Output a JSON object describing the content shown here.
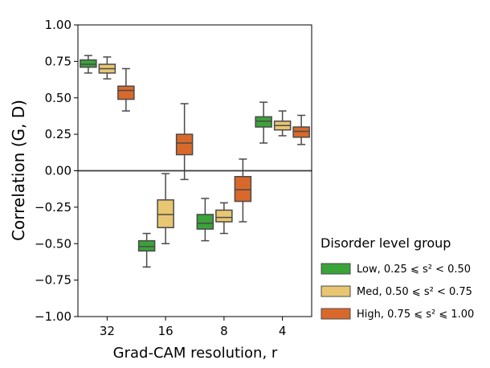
{
  "chart_data": {
    "type": "boxplot",
    "xlabel": "Grad-CAM resolution, r",
    "ylabel": "Correlation (G, D)",
    "ylim": [
      -1.0,
      1.0
    ],
    "yticks": [
      "1.00",
      "0.75",
      "0.50",
      "0.25",
      "0.00",
      "−0.25",
      "−0.50",
      "−0.75",
      "−1.00"
    ],
    "ytick_values": [
      1.0,
      0.75,
      0.5,
      0.25,
      0.0,
      -0.25,
      -0.5,
      -0.75,
      -1.0
    ],
    "categories": [
      "32",
      "16",
      "8",
      "4"
    ],
    "reference_line": 0.0,
    "legend": {
      "title": "Disorder level group",
      "position": "right",
      "entries": [
        {
          "label": "Low, 0.25 ⩽ s² < 0.50",
          "color": "#3aa33a"
        },
        {
          "label": "Med, 0.50 ⩽ s² < 0.75",
          "color": "#e8c672"
        },
        {
          "label": "High, 0.75 ⩽ s² ⩽ 1.00",
          "color": "#d9692a"
        }
      ]
    },
    "series": [
      {
        "name": "Low",
        "color": "#3aa33a",
        "boxes": [
          {
            "whislo": 0.67,
            "q1": 0.71,
            "med": 0.73,
            "q3": 0.76,
            "whishi": 0.79
          },
          {
            "whislo": -0.66,
            "q1": -0.55,
            "med": -0.52,
            "q3": -0.48,
            "whishi": -0.43
          },
          {
            "whislo": -0.48,
            "q1": -0.4,
            "med": -0.36,
            "q3": -0.3,
            "whishi": -0.19
          },
          {
            "whislo": 0.19,
            "q1": 0.3,
            "med": 0.34,
            "q3": 0.37,
            "whishi": 0.47
          }
        ]
      },
      {
        "name": "Med",
        "color": "#e8c672",
        "boxes": [
          {
            "whislo": 0.63,
            "q1": 0.67,
            "med": 0.7,
            "q3": 0.73,
            "whishi": 0.78
          },
          {
            "whislo": -0.5,
            "q1": -0.39,
            "med": -0.3,
            "q3": -0.2,
            "whishi": -0.02
          },
          {
            "whislo": -0.43,
            "q1": -0.35,
            "med": -0.32,
            "q3": -0.27,
            "whishi": -0.22
          },
          {
            "whislo": 0.24,
            "q1": 0.28,
            "med": 0.31,
            "q3": 0.34,
            "whishi": 0.41
          }
        ]
      },
      {
        "name": "High",
        "color": "#d9692a",
        "boxes": [
          {
            "whislo": 0.41,
            "q1": 0.49,
            "med": 0.55,
            "q3": 0.58,
            "whishi": 0.7
          },
          {
            "whislo": -0.06,
            "q1": 0.11,
            "med": 0.19,
            "q3": 0.25,
            "whishi": 0.46
          },
          {
            "whislo": -0.35,
            "q1": -0.21,
            "med": -0.13,
            "q3": -0.04,
            "whishi": 0.08
          },
          {
            "whislo": 0.18,
            "q1": 0.23,
            "med": 0.27,
            "q3": 0.3,
            "whishi": 0.38
          }
        ]
      }
    ]
  }
}
